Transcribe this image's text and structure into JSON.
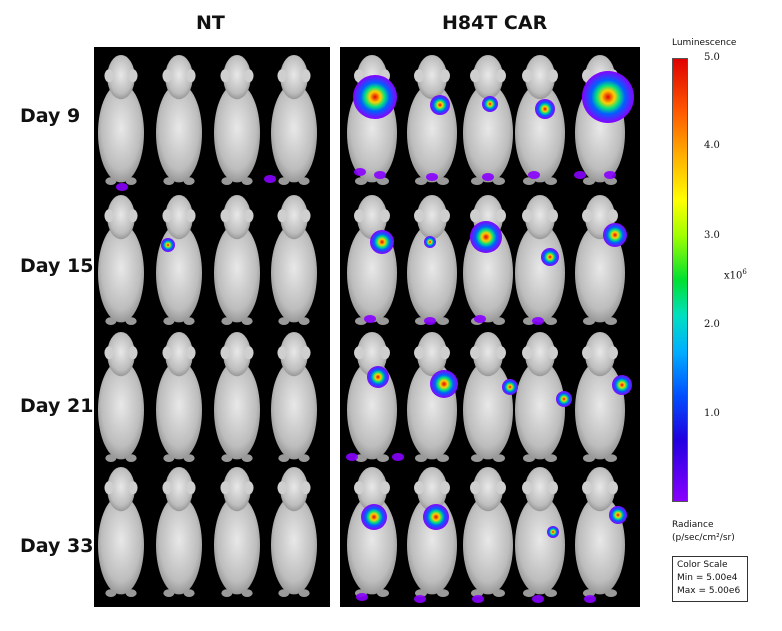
{
  "groups": {
    "left": "NT",
    "right": "H84T CAR"
  },
  "days": [
    "Day 9",
    "Day 15",
    "Day 21",
    "Day 33"
  ],
  "colorbar": {
    "title": "Luminescence",
    "ticks": [
      "5.0",
      "4.0",
      "3.0",
      "2.0",
      "1.0"
    ],
    "unit_base": "x10",
    "unit_exp": "6",
    "colors": [
      "#e00000",
      "#ffff00",
      "#00e030",
      "#00b0ff",
      "#2000e0",
      "#8a00ff"
    ]
  },
  "radiance": {
    "label": "Radiance",
    "unit": "(p/sec/cm²/sr)"
  },
  "color_scale": {
    "title": "Color Scale",
    "min": "Min = 5.00e4",
    "max": "Max = 5.00e6"
  }
}
